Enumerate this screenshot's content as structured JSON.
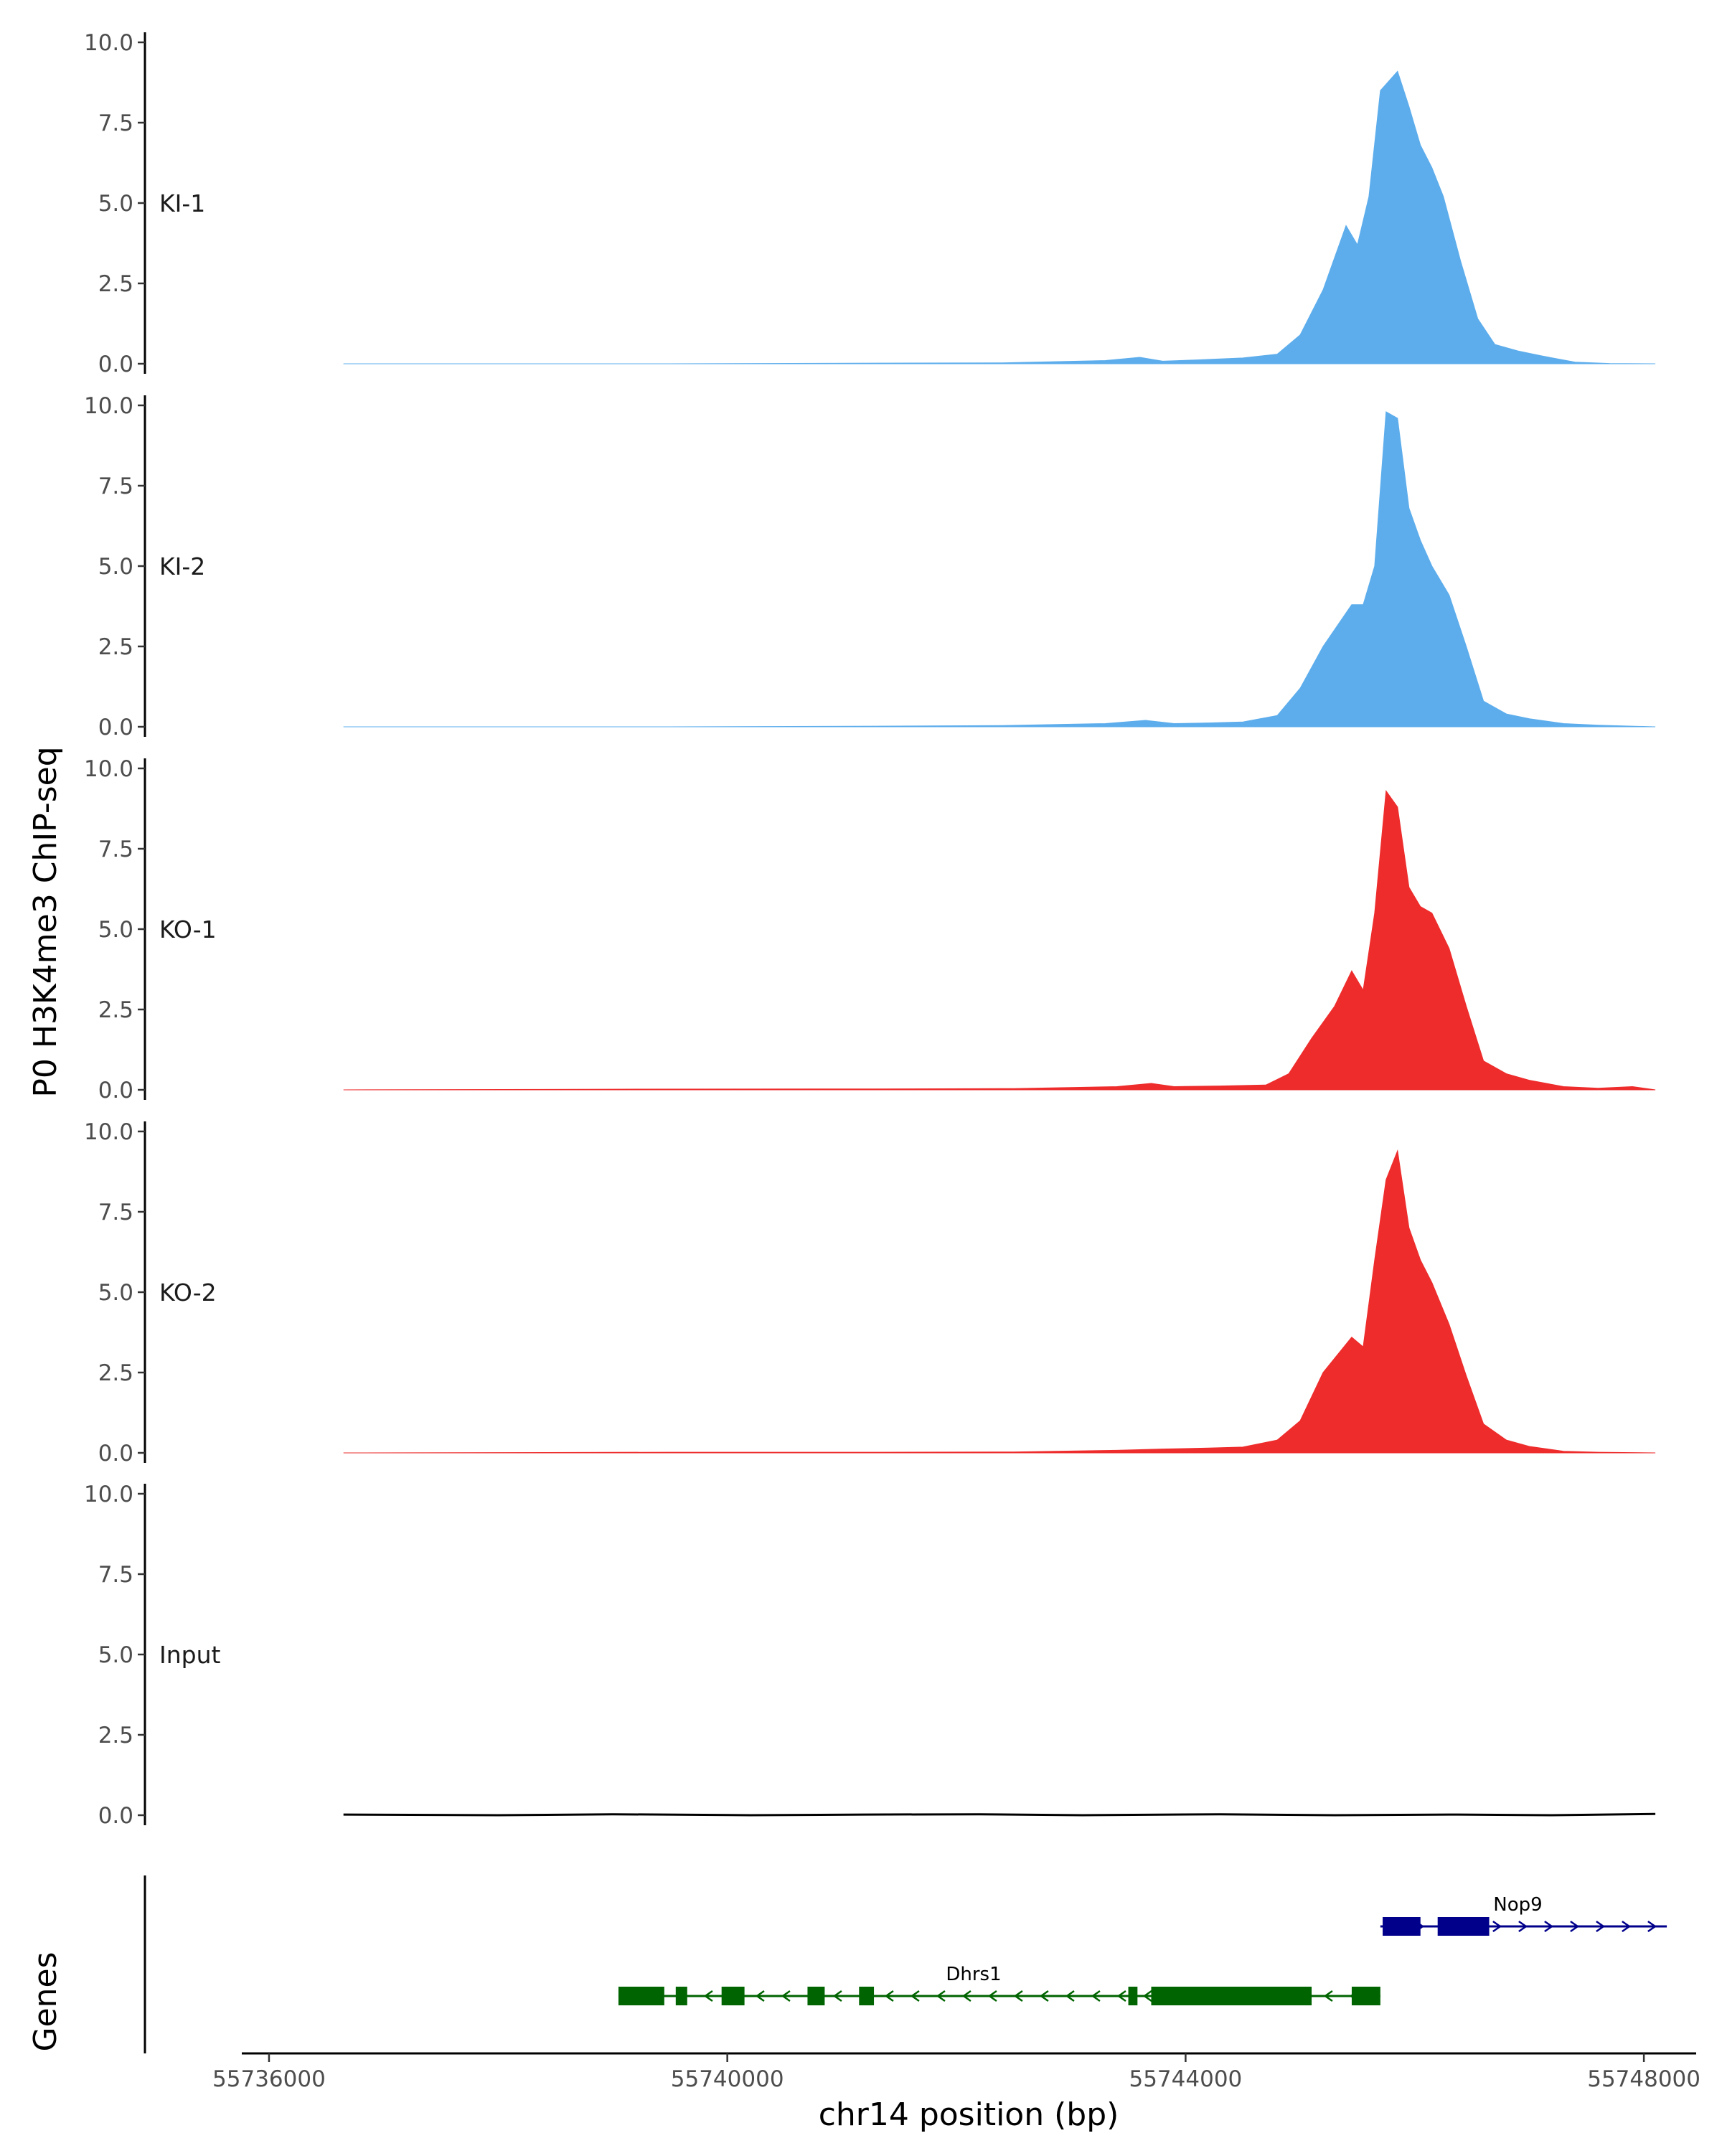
{
  "chart_data": {
    "type": "area",
    "ylabel": "P0 H3K4me3 ChIP-seq",
    "xlabel": "chr14 position (bp)",
    "genes_label": "Genes",
    "xlim": [
      55735800,
      55748400
    ],
    "ylim": [
      0,
      10
    ],
    "y_ticks": [
      0,
      2.5,
      5,
      7.5,
      10
    ],
    "y_tick_labels": [
      "0.0",
      "2.5",
      "5.0",
      "7.5",
      "10.0"
    ],
    "x_ticks": [
      55736000,
      55740000,
      55744000,
      55748000
    ],
    "x_tick_labels": [
      "55736000",
      "55740000",
      "55744000",
      "55748000"
    ],
    "grid": false,
    "tracks": [
      {
        "name": "KI-1",
        "color": "#5DADEC",
        "x": [
          55736650,
          55739500,
          55741300,
          55742400,
          55743300,
          55743600,
          55743800,
          55744100,
          55744500,
          55744800,
          55745000,
          55745200,
          55745400,
          55745500,
          55745600,
          55745700,
          55745850,
          55745950,
          55746050,
          55746150,
          55746250,
          55746400,
          55746550,
          55746700,
          55746900,
          55747100,
          55747400,
          55747700,
          55748100
        ],
        "y": [
          0.0,
          0.0,
          0.02,
          0.03,
          0.1,
          0.2,
          0.08,
          0.12,
          0.18,
          0.3,
          0.9,
          2.3,
          4.3,
          3.7,
          5.2,
          8.5,
          9.1,
          8.0,
          6.8,
          6.1,
          5.2,
          3.2,
          1.4,
          0.6,
          0.4,
          0.25,
          0.05,
          0.01,
          0.0
        ]
      },
      {
        "name": "KI-2",
        "color": "#5DADEC",
        "x": [
          55736650,
          55739500,
          55741300,
          55742400,
          55743300,
          55743650,
          55743900,
          55744200,
          55744500,
          55744800,
          55745000,
          55745200,
          55745450,
          55745550,
          55745650,
          55745750,
          55745850,
          55745950,
          55746050,
          55746150,
          55746300,
          55746450,
          55746600,
          55746800,
          55747000,
          55747300,
          55747600,
          55748100
        ],
        "y": [
          0.0,
          0.0,
          0.02,
          0.04,
          0.1,
          0.2,
          0.1,
          0.12,
          0.15,
          0.35,
          1.2,
          2.5,
          3.8,
          3.8,
          5.0,
          9.8,
          9.6,
          6.8,
          5.8,
          5.0,
          4.1,
          2.5,
          0.8,
          0.4,
          0.25,
          0.1,
          0.05,
          0.0
        ]
      },
      {
        "name": "KO-1",
        "color": "#EE2C2C",
        "x": [
          55736650,
          55739000,
          55741300,
          55742500,
          55743400,
          55743700,
          55743900,
          55744300,
          55744700,
          55744900,
          55745100,
          55745300,
          55745450,
          55745550,
          55745650,
          55745750,
          55745850,
          55745950,
          55746050,
          55746150,
          55746300,
          55746450,
          55746600,
          55746800,
          55747000,
          55747300,
          55747600,
          55747900,
          55748100
        ],
        "y": [
          0.0,
          0.02,
          0.03,
          0.04,
          0.1,
          0.2,
          0.1,
          0.12,
          0.15,
          0.5,
          1.6,
          2.6,
          3.7,
          3.1,
          5.5,
          9.3,
          8.8,
          6.3,
          5.7,
          5.5,
          4.4,
          2.6,
          0.9,
          0.5,
          0.3,
          0.1,
          0.05,
          0.1,
          0.0
        ]
      },
      {
        "name": "KO-2",
        "color": "#EE2C2C",
        "x": [
          55736650,
          55739500,
          55741300,
          55742500,
          55743400,
          55743800,
          55744200,
          55744500,
          55744800,
          55745000,
          55745200,
          55745450,
          55745550,
          55745650,
          55745750,
          55745850,
          55745950,
          55746050,
          55746150,
          55746300,
          55746450,
          55746600,
          55746800,
          55747000,
          55747300,
          55747600,
          55748100
        ],
        "y": [
          0.0,
          0.02,
          0.02,
          0.03,
          0.08,
          0.12,
          0.15,
          0.18,
          0.4,
          1.0,
          2.5,
          3.6,
          3.3,
          6.0,
          8.5,
          9.4,
          7.0,
          6.0,
          5.3,
          4.0,
          2.4,
          0.9,
          0.4,
          0.2,
          0.05,
          0.02,
          0.0
        ]
      },
      {
        "name": "Input",
        "color": "#000000",
        "x": [
          55736650,
          55738000,
          55739000,
          55740200,
          55741200,
          55742200,
          55743100,
          55744300,
          55745300,
          55746300,
          55747200,
          55748100
        ],
        "y": [
          0.02,
          0.0,
          0.03,
          0.0,
          0.02,
          0.03,
          0.0,
          0.03,
          0.0,
          0.02,
          0.0,
          0.04
        ]
      }
    ],
    "genes": [
      {
        "name": "Nop9",
        "strand": "+",
        "color": "#00008B",
        "start": 55745700,
        "end": 55748200,
        "exons": [
          [
            55745720,
            55746050
          ],
          [
            55746200,
            55746650
          ]
        ]
      },
      {
        "name": "Dhrs1",
        "strand": "-",
        "color": "#006400",
        "start": 55739050,
        "end": 55745700,
        "exons": [
          [
            55739050,
            55739450
          ],
          [
            55739550,
            55739650
          ],
          [
            55739950,
            55740150
          ],
          [
            55740700,
            55740850
          ],
          [
            55741150,
            55741280
          ],
          [
            55743500,
            55743580
          ],
          [
            55743700,
            55745100
          ],
          [
            55745450,
            55745700
          ]
        ]
      }
    ]
  }
}
